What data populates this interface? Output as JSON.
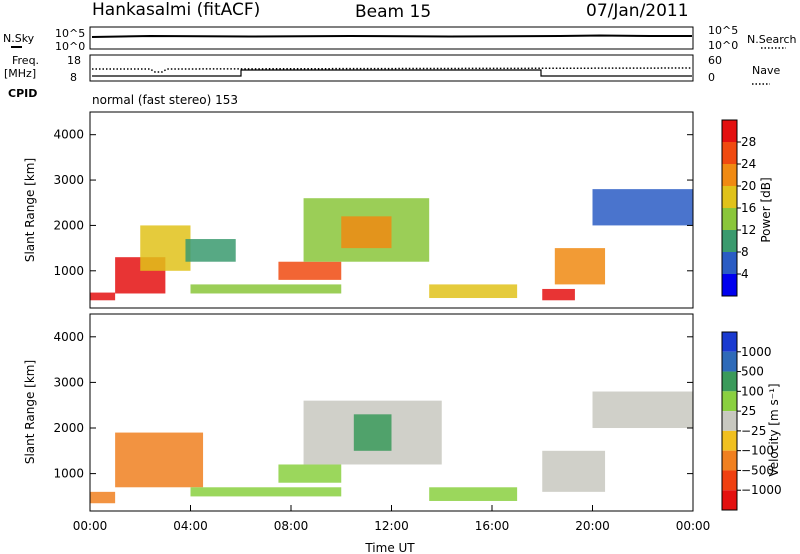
{
  "header": {
    "station": "Hankasalmi (fitACF)",
    "beam": "Beam 15",
    "date": "07/Jan/2011"
  },
  "top_panels": {
    "nsky_label": "N.Sky",
    "nsearch_label": "N.Search",
    "nsky_ticks": [
      "10^5",
      "10^0"
    ],
    "nsearch_ticks": [
      "10^5",
      "10^0"
    ],
    "freq_label": "Freq.",
    "freq_unit": "[MHz]",
    "freq_ticks": [
      "18",
      "8"
    ],
    "nave_label": "Nave",
    "nave_ticks": [
      "60",
      "0"
    ],
    "cpid_label": "CPID",
    "cpid_text": "normal (fast stereo) 153"
  },
  "chart_data": [
    {
      "type": "heatmap",
      "name": "power",
      "ylabel": "Slant Range [km]",
      "xlabel": "",
      "y_ticks": [
        "1000",
        "2000",
        "3000",
        "4000"
      ],
      "ylim": [
        180,
        4500
      ],
      "colorbar": {
        "label": "Power [dB]",
        "ticks": [
          "4",
          "8",
          "12",
          "16",
          "20",
          "24",
          "28"
        ],
        "colors": [
          "#0000ee",
          "#2a5cc4",
          "#3a9a6e",
          "#8ac63a",
          "#e0c21a",
          "#f08a12",
          "#f04a10",
          "#e41010"
        ]
      },
      "patches": [
        {
          "t0": 0.0,
          "t1": 1.0,
          "r0": 350,
          "r1": 520,
          "c": 7
        },
        {
          "t0": 1.0,
          "t1": 3.0,
          "r0": 500,
          "r1": 1300,
          "c": 7
        },
        {
          "t0": 2.0,
          "t1": 4.0,
          "r0": 1000,
          "r1": 2000,
          "c": 4
        },
        {
          "t0": 3.8,
          "t1": 5.8,
          "r0": 1200,
          "r1": 1700,
          "c": 2
        },
        {
          "t0": 4.0,
          "t1": 10.0,
          "r0": 500,
          "r1": 700,
          "c": 3
        },
        {
          "t0": 7.5,
          "t1": 10.0,
          "r0": 800,
          "r1": 1200,
          "c": 6
        },
        {
          "t0": 8.5,
          "t1": 13.5,
          "r0": 1200,
          "r1": 2600,
          "c": 3
        },
        {
          "t0": 10.0,
          "t1": 12.0,
          "r0": 1500,
          "r1": 2200,
          "c": 5
        },
        {
          "t0": 13.5,
          "t1": 17.0,
          "r0": 400,
          "r1": 700,
          "c": 4
        },
        {
          "t0": 18.0,
          "t1": 19.3,
          "r0": 350,
          "r1": 600,
          "c": 7
        },
        {
          "t0": 18.5,
          "t1": 20.5,
          "r0": 700,
          "r1": 1500,
          "c": 5
        },
        {
          "t0": 20.0,
          "t1": 24.0,
          "r0": 2000,
          "r1": 2800,
          "c": 1
        }
      ]
    },
    {
      "type": "heatmap",
      "name": "velocity",
      "ylabel": "Slant Range [km]",
      "xlabel": "Time UT",
      "x_ticks": [
        "00:00",
        "04:00",
        "08:00",
        "12:00",
        "16:00",
        "20:00",
        "00:00"
      ],
      "y_ticks": [
        "1000",
        "2000",
        "3000",
        "4000"
      ],
      "ylim": [
        180,
        4500
      ],
      "colorbar": {
        "label": "Velocity [m s⁻¹]",
        "ticks": [
          "1000",
          "500",
          "100",
          "25",
          "−25",
          "−100",
          "−500",
          "−1000"
        ],
        "colors": [
          "#1a3ad0",
          "#2e6ab8",
          "#3a9a5a",
          "#8ad040",
          "#c8c8c0",
          "#f0c020",
          "#f08020",
          "#f04010",
          "#e41010"
        ]
      },
      "patches": [
        {
          "t0": 0.0,
          "t1": 1.0,
          "r0": 350,
          "r1": 600,
          "c": 6
        },
        {
          "t0": 1.0,
          "t1": 4.5,
          "r0": 700,
          "r1": 1900,
          "c": 6
        },
        {
          "t0": 4.0,
          "t1": 10.0,
          "r0": 500,
          "r1": 700,
          "c": 3
        },
        {
          "t0": 7.5,
          "t1": 10.0,
          "r0": 800,
          "r1": 1200,
          "c": 3
        },
        {
          "t0": 8.5,
          "t1": 14.0,
          "r0": 1200,
          "r1": 2600,
          "c": 4
        },
        {
          "t0": 10.5,
          "t1": 12.0,
          "r0": 1500,
          "r1": 2300,
          "c": 2
        },
        {
          "t0": 13.5,
          "t1": 17.0,
          "r0": 400,
          "r1": 700,
          "c": 3
        },
        {
          "t0": 18.0,
          "t1": 20.5,
          "r0": 600,
          "r1": 1500,
          "c": 4
        },
        {
          "t0": 20.0,
          "t1": 24.0,
          "r0": 2000,
          "r1": 2800,
          "c": 4
        }
      ]
    }
  ]
}
